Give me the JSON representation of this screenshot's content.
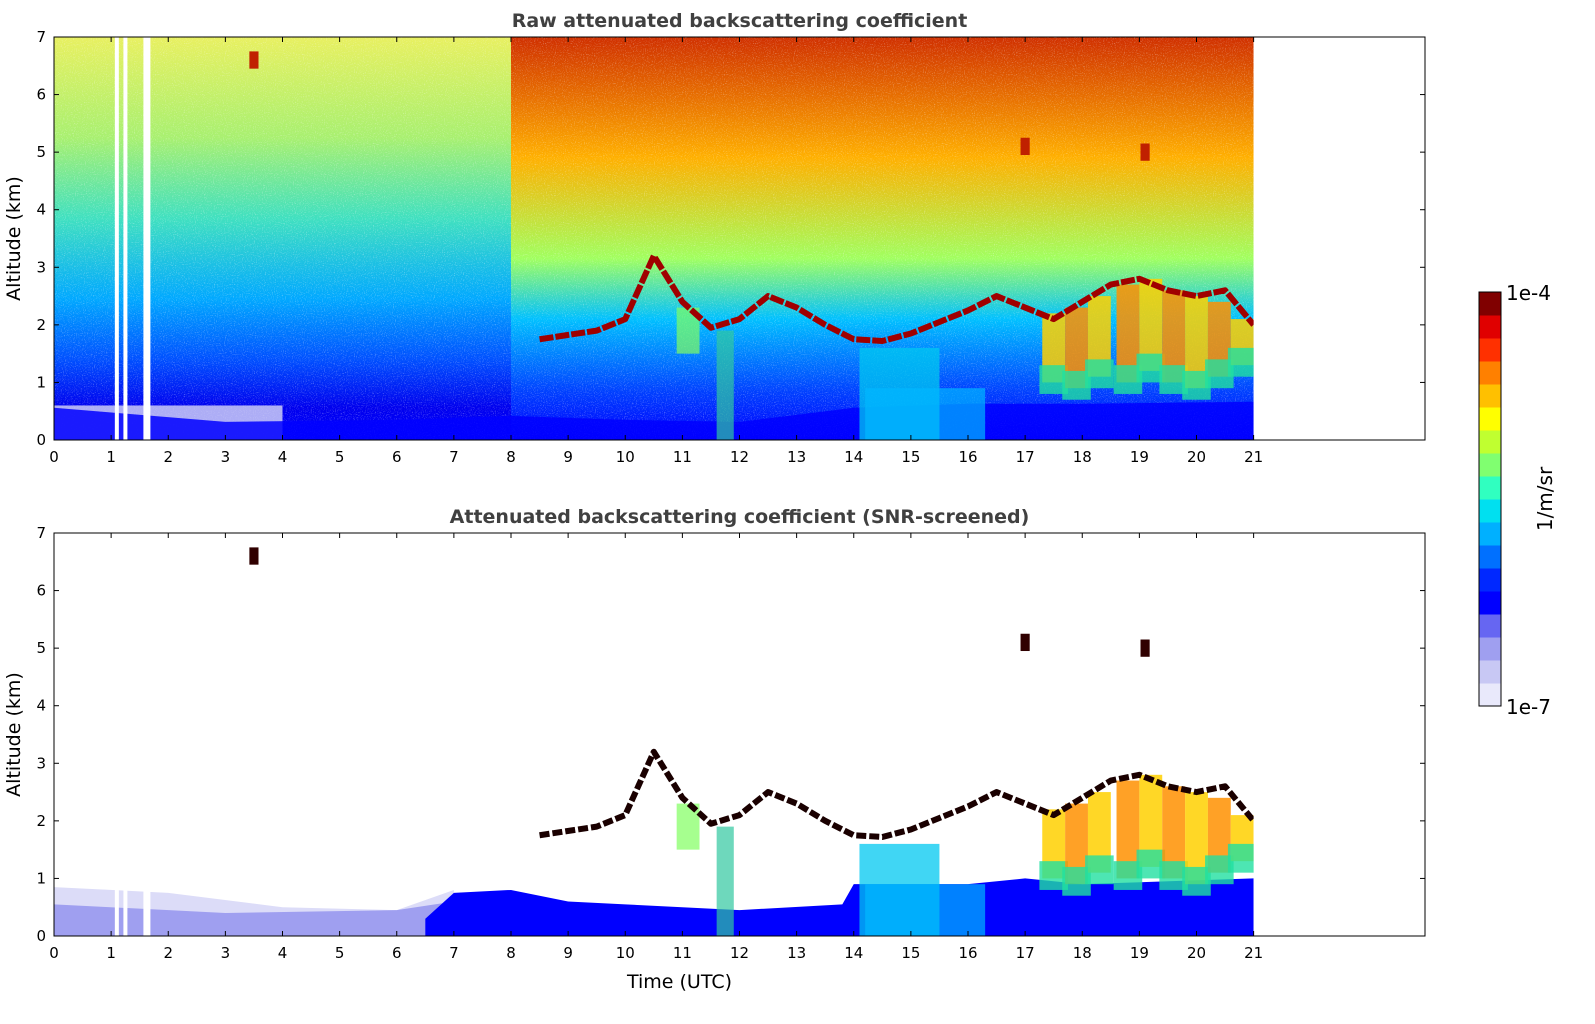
{
  "chart_data": [
    {
      "type": "heatmap",
      "title": "Raw attenuated backscattering coefficient",
      "xlabel": "",
      "ylabel": "Altitude (km)",
      "xlim": [
        0,
        24
      ],
      "ylim": [
        0,
        7
      ],
      "x_ticks": [
        "0",
        "1",
        "2",
        "3",
        "4",
        "5",
        "6",
        "7",
        "8",
        "9",
        "10",
        "11",
        "12",
        "13",
        "14",
        "15",
        "16",
        "17",
        "18",
        "19",
        "20",
        "21"
      ],
      "y_ticks": [
        "0",
        "1",
        "2",
        "3",
        "4",
        "5",
        "6",
        "7"
      ],
      "data_extent_x": [
        0,
        21
      ],
      "dropouts_x": [
        1.1,
        1.25,
        1.6
      ],
      "screened": false,
      "features": {
        "cloud_base_km": [
          {
            "t": 8.5,
            "z": 1.75
          },
          {
            "t": 9.5,
            "z": 1.9
          },
          {
            "t": 10.0,
            "z": 2.1
          },
          {
            "t": 10.5,
            "z": 3.2
          },
          {
            "t": 11.0,
            "z": 2.4
          },
          {
            "t": 11.5,
            "z": 1.95
          },
          {
            "t": 12.0,
            "z": 2.1
          },
          {
            "t": 12.5,
            "z": 2.5
          },
          {
            "t": 13.0,
            "z": 2.3
          },
          {
            "t": 13.5,
            "z": 2.0
          },
          {
            "t": 14.0,
            "z": 1.75
          },
          {
            "t": 14.5,
            "z": 1.72
          },
          {
            "t": 15.0,
            "z": 1.85
          },
          {
            "t": 15.5,
            "z": 2.05
          },
          {
            "t": 16.0,
            "z": 2.25
          },
          {
            "t": 16.5,
            "z": 2.5
          },
          {
            "t": 17.5,
            "z": 2.1
          },
          {
            "t": 18.5,
            "z": 2.7
          },
          {
            "t": 19.0,
            "z": 2.8
          },
          {
            "t": 19.5,
            "z": 2.6
          },
          {
            "t": 20.0,
            "z": 2.5
          },
          {
            "t": 20.5,
            "z": 2.6
          },
          {
            "t": 21.0,
            "z": 2.0
          }
        ],
        "elevated_cloud_km": [
          {
            "t": 17.0,
            "z": 5.1
          },
          {
            "t": 19.1,
            "z": 5.0
          },
          {
            "t": 3.5,
            "z": 6.6
          }
        ],
        "boundary_layer_top_km": [
          {
            "t": 0,
            "z": 0.8
          },
          {
            "t": 3,
            "z": 0.45
          },
          {
            "t": 6,
            "z": 0.5
          },
          {
            "t": 8,
            "z": 0.6
          },
          {
            "t": 10,
            "z": 0.5
          },
          {
            "t": 12,
            "z": 0.45
          },
          {
            "t": 14,
            "z": 0.8
          },
          {
            "t": 16,
            "z": 0.9
          },
          {
            "t": 18,
            "z": 0.9
          },
          {
            "t": 21,
            "z": 0.95
          }
        ]
      }
    },
    {
      "type": "heatmap",
      "title": "Attenuated backscattering coefficient (SNR-screened)",
      "xlabel": "Time (UTC)",
      "ylabel": "Altitude (km)",
      "xlim": [
        0,
        24
      ],
      "ylim": [
        0,
        7
      ],
      "x_ticks": [
        "0",
        "1",
        "2",
        "3",
        "4",
        "5",
        "6",
        "7",
        "8",
        "9",
        "10",
        "11",
        "12",
        "13",
        "14",
        "15",
        "16",
        "17",
        "18",
        "19",
        "20",
        "21"
      ],
      "y_ticks": [
        "0",
        "1",
        "2",
        "3",
        "4",
        "5",
        "6",
        "7"
      ],
      "data_extent_x": [
        0,
        21
      ],
      "dropouts_x": [
        1.1,
        1.25,
        1.6
      ],
      "screened": true
    }
  ],
  "colorbar": {
    "label": "1/m/sr",
    "max_label": "1e-4",
    "min_label": "1e-7",
    "colors": [
      "#e9e9fb",
      "#c8c8f4",
      "#9f9ff0",
      "#6666f2",
      "#0000ff",
      "#0028ff",
      "#0070ff",
      "#00b0ff",
      "#00e0f0",
      "#30ffc0",
      "#80ff70",
      "#c0ff30",
      "#ffff00",
      "#ffc000",
      "#ff8000",
      "#ff3000",
      "#e00000",
      "#800000"
    ]
  }
}
